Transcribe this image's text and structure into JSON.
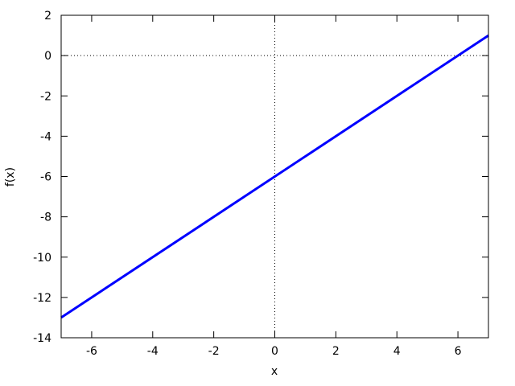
{
  "chart_data": {
    "type": "line",
    "title": "",
    "xlabel": "x",
    "ylabel": "f(x)",
    "xlim": [
      -7,
      7
    ],
    "ylim": [
      -14,
      2
    ],
    "xticks": [
      -6,
      -4,
      -2,
      0,
      2,
      4,
      6
    ],
    "yticks": [
      2,
      0,
      -2,
      -4,
      -6,
      -8,
      -10,
      -12,
      -14
    ],
    "grid": "dotted zero-axis lines at x=0 and y=0 only",
    "legend_position": "none",
    "background_color": "#ffffff",
    "border_color": "#000000",
    "zero_line_color": "#000000",
    "series": [
      {
        "color": "#0000ff",
        "line_width": 3,
        "points": [
          [
            -7,
            -13
          ],
          [
            7,
            1
          ]
        ]
      }
    ]
  }
}
